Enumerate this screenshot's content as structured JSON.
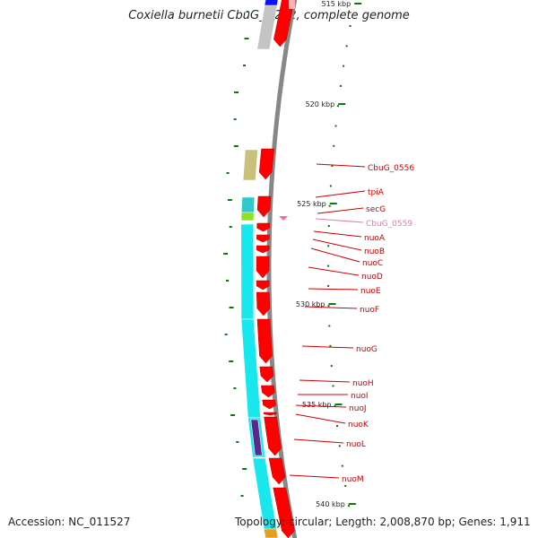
{
  "title": "Coxiella burnetii CbuG_Q212, complete genome",
  "accession_text": "Accession: NC_011527",
  "summary_text": "Topology: circular; Length: 2,008,870 bp; Genes: 1,911",
  "colors": {
    "cds": "#ff0000",
    "backbone": "#888888",
    "tick": "#0a7a0a",
    "gene_label": "#cc0000",
    "faded_label": "#e07ab0",
    "cyan_feature": "#18e8ee",
    "olive_feature": "#c9c07a",
    "grey_feature": "#c4c4c4"
  },
  "scale_labels": [
    "515 kbp",
    "520 kbp",
    "525 kbp",
    "530 kbp",
    "535 kbp",
    "540 kbp"
  ],
  "gene_labels": [
    {
      "text": "CbuG_0556",
      "faded": false
    },
    {
      "text": "tpiA",
      "faded": false
    },
    {
      "text": "secG",
      "faded": false
    },
    {
      "text": "CbuG_0559",
      "faded": true
    },
    {
      "text": "nuoA",
      "faded": false
    },
    {
      "text": "nuoB",
      "faded": false
    },
    {
      "text": "nuoC",
      "faded": false
    },
    {
      "text": "nuoD",
      "faded": false
    },
    {
      "text": "nuoE",
      "faded": false
    },
    {
      "text": "nuoF",
      "faded": false
    },
    {
      "text": "nuoG",
      "faded": false
    },
    {
      "text": "nuoH",
      "faded": false
    },
    {
      "text": "nuoI",
      "faded": false
    },
    {
      "text": "nuoJ",
      "faded": false
    },
    {
      "text": "nuoK",
      "faded": false
    },
    {
      "text": "nuoL",
      "faded": false
    },
    {
      "text": "nuoM",
      "faded": false
    }
  ]
}
